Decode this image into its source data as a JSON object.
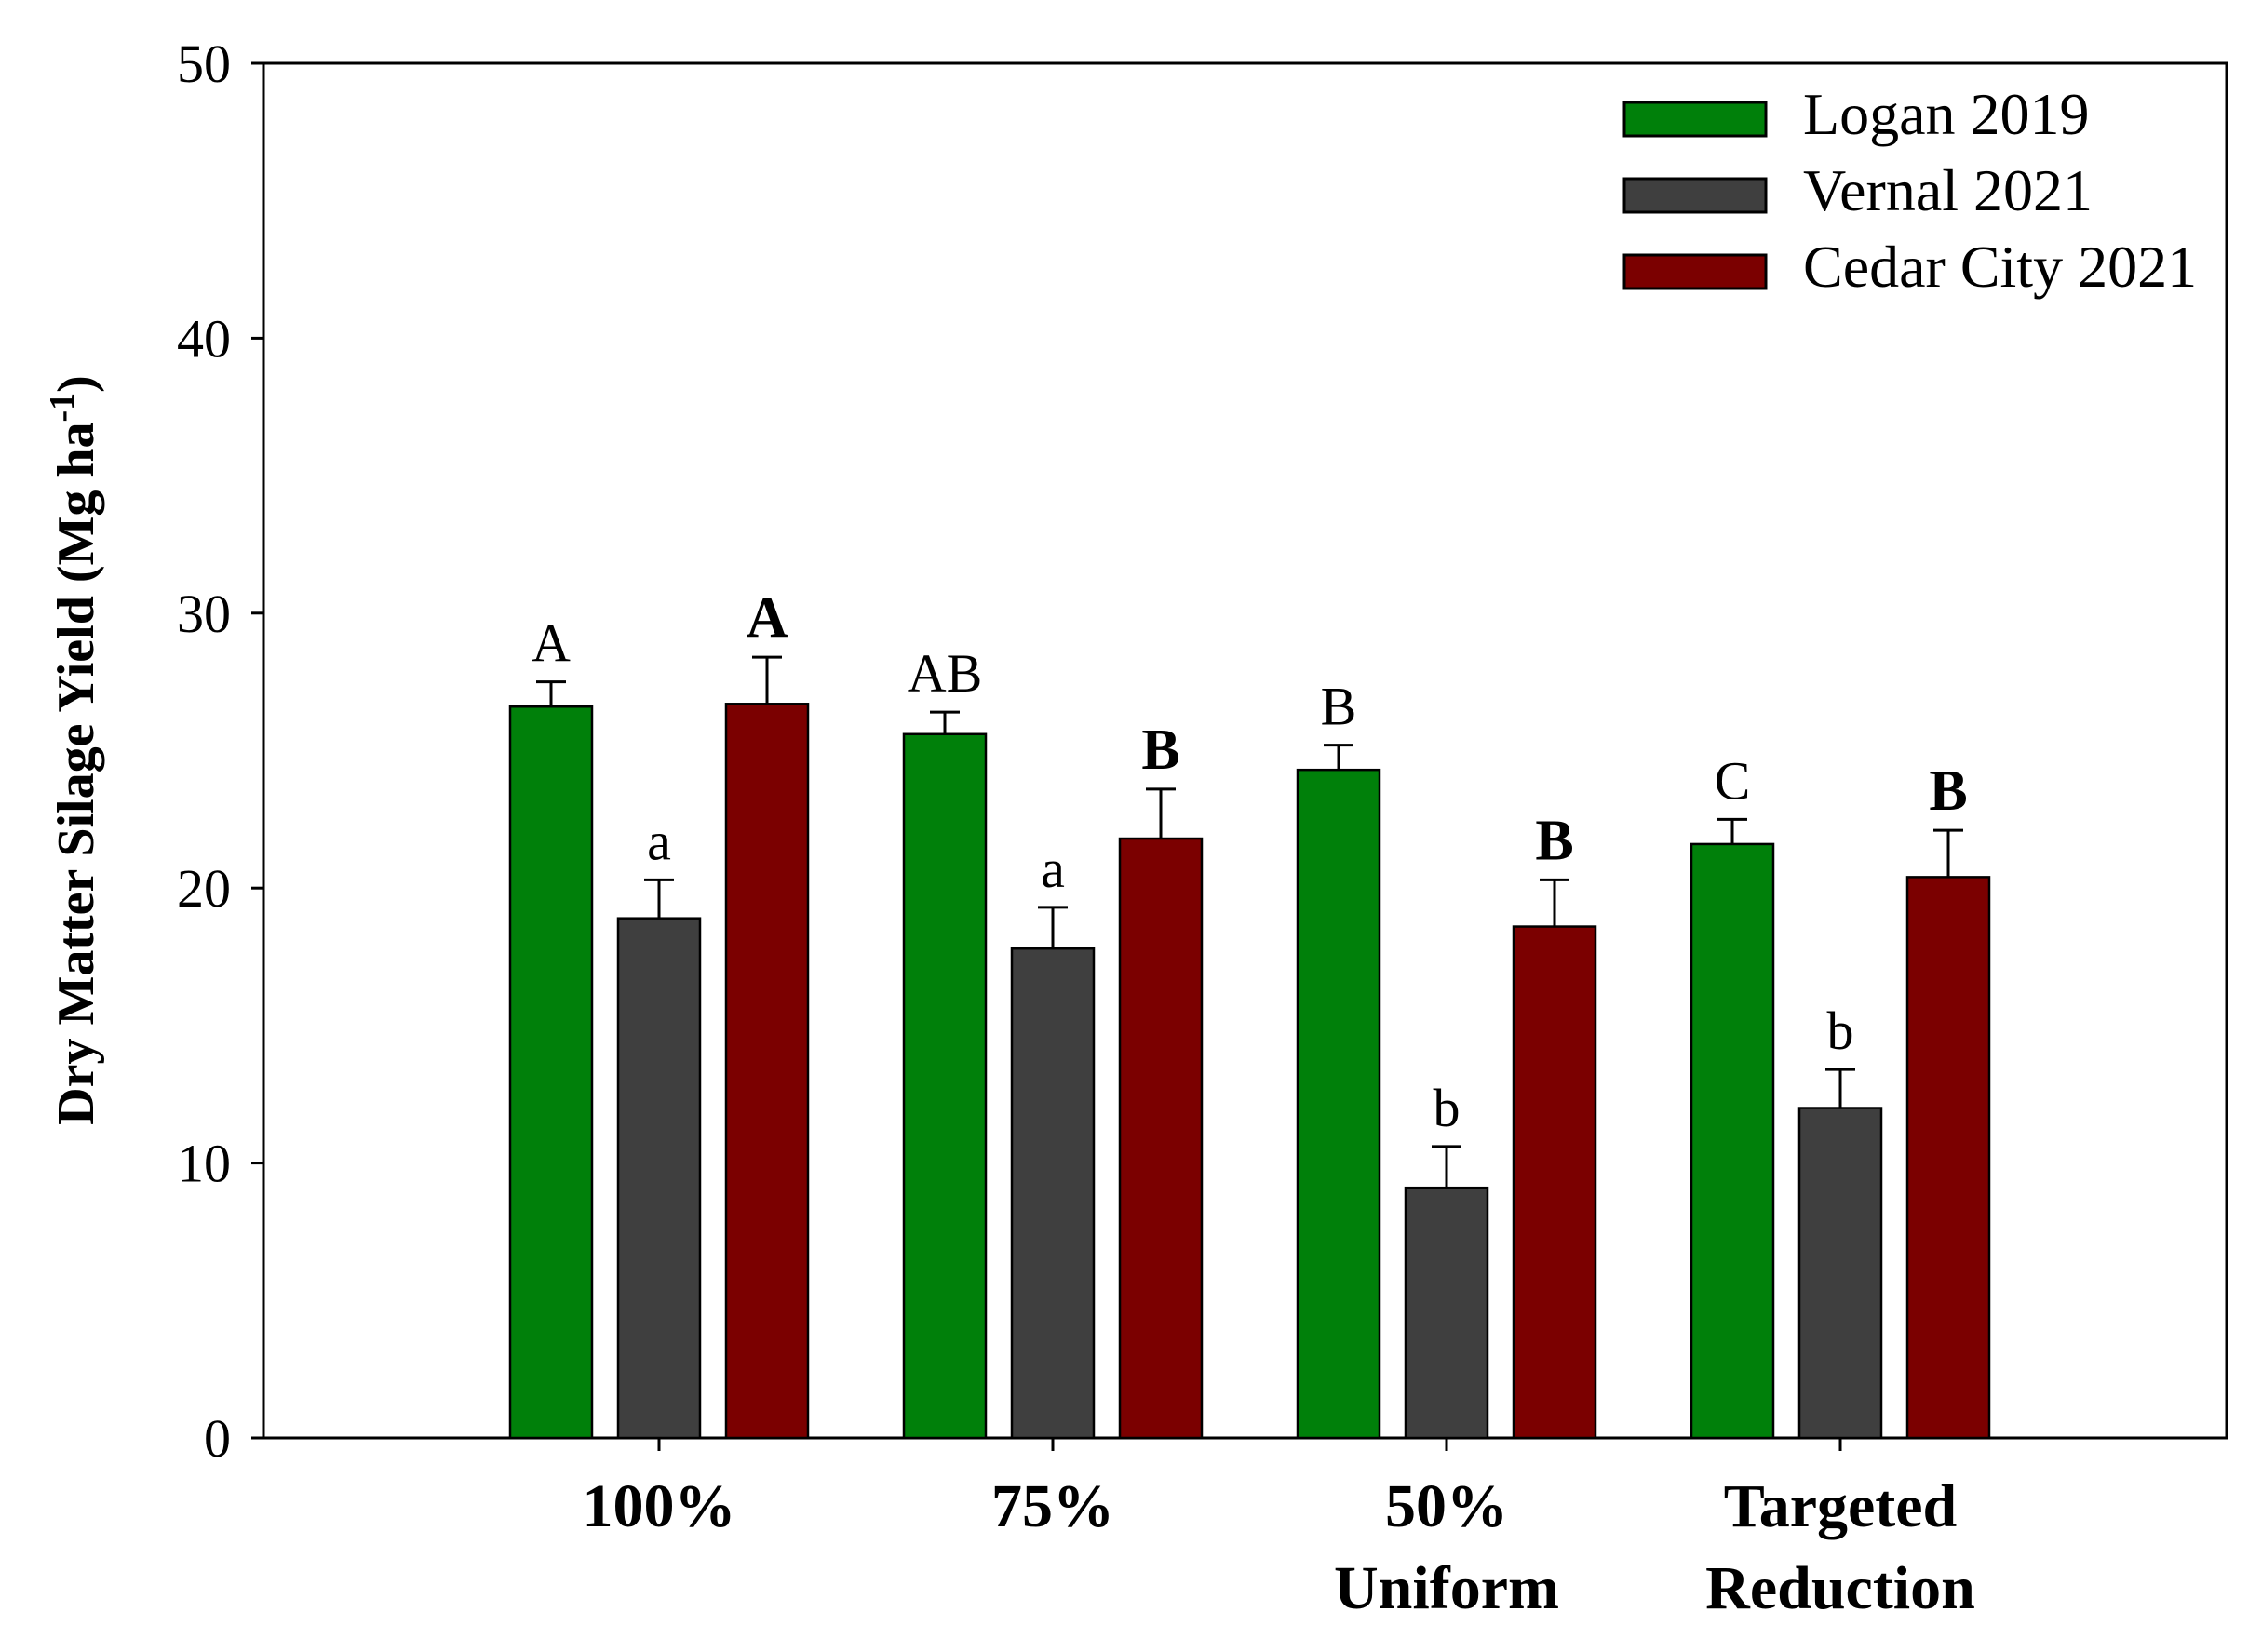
{
  "chart_data": {
    "type": "bar",
    "title": "",
    "xlabel": "",
    "ylabel": "Dry Matter Silage Yield (Mg ha",
    "ylabel_sup": "-1",
    "ylabel_close": ")",
    "ylim": [
      0,
      50
    ],
    "yticks": [
      "0",
      "10",
      "20",
      "30",
      "40",
      "50"
    ],
    "categories": [
      [
        "100%"
      ],
      [
        "75%"
      ],
      [
        "50%",
        "Uniform"
      ],
      [
        "Targeted",
        "Reduction"
      ]
    ],
    "series": [
      {
        "name": "Logan 2019",
        "color": "#00800a",
        "values": [
          26.6,
          25.6,
          24.3,
          21.6
        ],
        "errors": [
          0.9,
          0.8,
          0.9,
          0.9
        ],
        "letters": [
          "A",
          "AB",
          "B",
          "C"
        ],
        "letters_bold": false
      },
      {
        "name": "Vernal 2021",
        "color": "#3f3f3f",
        "values": [
          18.9,
          17.8,
          9.1,
          12.0
        ],
        "errors": [
          1.4,
          1.5,
          1.5,
          1.4
        ],
        "letters": [
          "a",
          "a",
          "b",
          "b"
        ],
        "letters_bold": false
      },
      {
        "name": "Cedar City 2021",
        "color": "#7b0000",
        "values": [
          26.7,
          21.8,
          18.6,
          20.4
        ],
        "errors": [
          1.7,
          1.8,
          1.7,
          1.7
        ],
        "letters": [
          "A",
          "B",
          "B",
          "B"
        ],
        "letters_bold": true
      }
    ],
    "legend_position": "top-right",
    "grid": false
  }
}
